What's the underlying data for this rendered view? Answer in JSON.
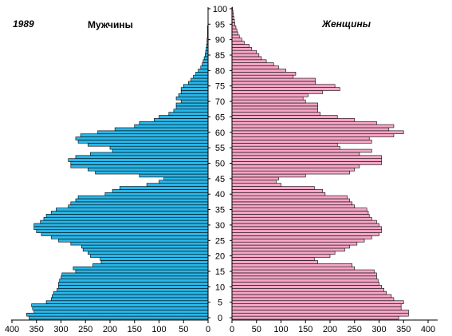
{
  "chart_data": {
    "type": "bar",
    "year_label": "1989",
    "left_title": "Мужчины",
    "right_title": "Женщины",
    "age_range": [
      0,
      100
    ],
    "age_ticks": [
      "0",
      "5",
      "10",
      "15",
      "20",
      "25",
      "30",
      "35",
      "40",
      "45",
      "50",
      "55",
      "60",
      "65",
      "70",
      "75",
      "80",
      "85",
      "90",
      "95",
      "100"
    ],
    "x_range_male": [
      0,
      400
    ],
    "x_range_female": [
      0,
      400
    ],
    "x_ticks_male": [
      "400",
      "350",
      "300",
      "250",
      "200",
      "150",
      "100",
      "50",
      "0"
    ],
    "x_ticks_female": [
      "0",
      "50",
      "100",
      "150",
      "200",
      "250",
      "300",
      "350",
      "400"
    ],
    "colors": {
      "male": "#29B6E8",
      "female": "#F7A6C6",
      "edge": "#000000"
    },
    "series": [
      {
        "name": "Мужчины",
        "ages": [
          0,
          1,
          2,
          3,
          4,
          5,
          6,
          7,
          8,
          9,
          10,
          11,
          12,
          13,
          14,
          15,
          16,
          17,
          18,
          19,
          20,
          21,
          22,
          23,
          24,
          25,
          26,
          27,
          28,
          29,
          30,
          31,
          32,
          33,
          34,
          35,
          36,
          37,
          38,
          39,
          40,
          41,
          42,
          43,
          44,
          45,
          46,
          47,
          48,
          49,
          50,
          51,
          52,
          53,
          54,
          55,
          56,
          57,
          58,
          59,
          60,
          61,
          62,
          63,
          64,
          65,
          66,
          67,
          68,
          69,
          70,
          71,
          72,
          73,
          74,
          75,
          76,
          77,
          78,
          79,
          80,
          81,
          82,
          83,
          84,
          85,
          86,
          87,
          88,
          89,
          90,
          91,
          92,
          93,
          94,
          95,
          96,
          97,
          98,
          99,
          100
        ],
        "values": [
          365,
          370,
          355,
          358,
          360,
          330,
          320,
          318,
          315,
          308,
          305,
          305,
          303,
          300,
          298,
          270,
          275,
          235,
          218,
          220,
          240,
          245,
          255,
          258,
          280,
          305,
          320,
          340,
          350,
          355,
          355,
          342,
          335,
          330,
          320,
          310,
          285,
          280,
          270,
          265,
          210,
          195,
          180,
          125,
          100,
          90,
          140,
          230,
          245,
          280,
          280,
          285,
          270,
          240,
          195,
          200,
          245,
          265,
          270,
          260,
          225,
          190,
          150,
          140,
          110,
          100,
          80,
          70,
          65,
          65,
          55,
          65,
          60,
          55,
          55,
          50,
          40,
          35,
          30,
          25,
          20,
          15,
          12,
          10,
          8,
          6,
          5,
          4,
          3,
          2,
          2,
          1,
          1,
          1,
          1,
          0,
          0,
          0,
          0,
          0,
          0
        ]
      },
      {
        "name": "Женщины",
        "ages": [
          0,
          1,
          2,
          3,
          4,
          5,
          6,
          7,
          8,
          9,
          10,
          11,
          12,
          13,
          14,
          15,
          16,
          17,
          18,
          19,
          20,
          21,
          22,
          23,
          24,
          25,
          26,
          27,
          28,
          29,
          30,
          31,
          32,
          33,
          34,
          35,
          36,
          37,
          38,
          39,
          40,
          41,
          42,
          43,
          44,
          45,
          46,
          47,
          48,
          49,
          50,
          51,
          52,
          53,
          54,
          55,
          56,
          57,
          58,
          59,
          60,
          61,
          62,
          63,
          64,
          65,
          66,
          67,
          68,
          69,
          70,
          71,
          72,
          73,
          74,
          75,
          76,
          77,
          78,
          79,
          80,
          81,
          82,
          83,
          84,
          85,
          86,
          87,
          88,
          89,
          90,
          91,
          92,
          93,
          94,
          95,
          96,
          97,
          98,
          99,
          100
        ],
        "values": [
          340,
          360,
          360,
          345,
          345,
          350,
          330,
          325,
          315,
          310,
          305,
          300,
          298,
          295,
          295,
          290,
          250,
          245,
          175,
          168,
          200,
          210,
          230,
          240,
          255,
          270,
          285,
          300,
          305,
          305,
          300,
          295,
          285,
          280,
          278,
          275,
          250,
          245,
          240,
          235,
          190,
          185,
          168,
          100,
          90,
          95,
          150,
          240,
          250,
          260,
          305,
          305,
          305,
          260,
          285,
          220,
          215,
          285,
          280,
          330,
          350,
          320,
          330,
          295,
          250,
          215,
          180,
          175,
          175,
          175,
          150,
          145,
          155,
          185,
          220,
          210,
          170,
          170,
          125,
          130,
          110,
          95,
          85,
          70,
          60,
          55,
          50,
          40,
          35,
          25,
          20,
          15,
          12,
          10,
          8,
          6,
          5,
          4,
          3,
          2,
          1
        ]
      }
    ]
  }
}
